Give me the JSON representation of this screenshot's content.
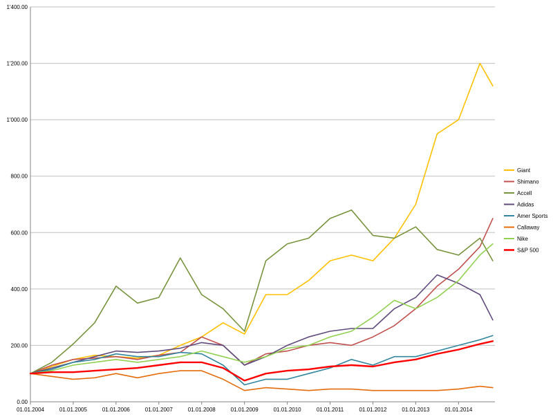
{
  "chart_data": {
    "type": "line",
    "title": "",
    "xlabel": "",
    "ylabel": "",
    "ylim": [
      0,
      1400
    ],
    "y_ticks": [
      "0.00",
      "200.00",
      "400.00",
      "600.00",
      "800.00",
      "1'000.00",
      "1'200.00",
      "1'400.00"
    ],
    "x_ticks": [
      "01.01.2004",
      "01.01.2005",
      "01.01.2006",
      "01.01.2007",
      "01.01.2008",
      "01.01.2009",
      "01.01.2010",
      "01.01.2011",
      "01.01.2012",
      "01.01.2013",
      "01.01.2014"
    ],
    "x": [
      2004.0,
      2004.5,
      2005.0,
      2005.5,
      2006.0,
      2006.5,
      2007.0,
      2007.5,
      2008.0,
      2008.5,
      2009.0,
      2009.5,
      2010.0,
      2010.5,
      2011.0,
      2011.5,
      2012.0,
      2012.5,
      2013.0,
      2013.5,
      2014.0,
      2014.5,
      2014.8
    ],
    "grid": true,
    "legend_position": "right",
    "series": [
      {
        "name": "Giant",
        "color": "#FFC000",
        "values": [
          100,
          125,
          150,
          165,
          160,
          155,
          165,
          200,
          230,
          280,
          240,
          380,
          380,
          430,
          500,
          520,
          500,
          580,
          700,
          950,
          1000,
          1200,
          1120
        ]
      },
      {
        "name": "Shimano",
        "color": "#C0504D",
        "values": [
          100,
          130,
          150,
          155,
          160,
          150,
          165,
          175,
          230,
          200,
          130,
          170,
          180,
          200,
          210,
          200,
          230,
          270,
          330,
          410,
          470,
          550,
          650
        ]
      },
      {
        "name": "Accell",
        "color": "#77933C",
        "values": [
          100,
          140,
          205,
          280,
          410,
          350,
          370,
          510,
          380,
          330,
          250,
          500,
          560,
          580,
          650,
          680,
          590,
          580,
          620,
          540,
          520,
          580,
          500
        ]
      },
      {
        "name": "Adidas",
        "color": "#604A7B",
        "values": [
          100,
          120,
          140,
          160,
          180,
          175,
          180,
          190,
          210,
          200,
          130,
          160,
          200,
          230,
          250,
          260,
          260,
          330,
          370,
          450,
          420,
          380,
          290
        ]
      },
      {
        "name": "Amer Sports",
        "color": "#31859C",
        "values": [
          100,
          115,
          140,
          150,
          170,
          160,
          160,
          175,
          170,
          130,
          60,
          80,
          80,
          100,
          120,
          150,
          130,
          160,
          160,
          180,
          200,
          220,
          235
        ]
      },
      {
        "name": "Callaway",
        "color": "#E46C0A",
        "values": [
          100,
          90,
          80,
          85,
          100,
          85,
          100,
          110,
          110,
          80,
          40,
          50,
          45,
          40,
          45,
          45,
          40,
          40,
          40,
          40,
          45,
          55,
          50
        ]
      },
      {
        "name": "Nike",
        "color": "#92D050",
        "values": [
          100,
          110,
          130,
          140,
          150,
          140,
          150,
          160,
          180,
          160,
          140,
          160,
          190,
          200,
          230,
          250,
          300,
          360,
          330,
          370,
          430,
          520,
          560
        ]
      },
      {
        "name": "S&P 500",
        "color": "#FF0000",
        "values": [
          100,
          105,
          105,
          110,
          115,
          120,
          130,
          140,
          140,
          120,
          75,
          100,
          110,
          115,
          125,
          130,
          125,
          140,
          150,
          170,
          185,
          205,
          215
        ]
      }
    ]
  }
}
